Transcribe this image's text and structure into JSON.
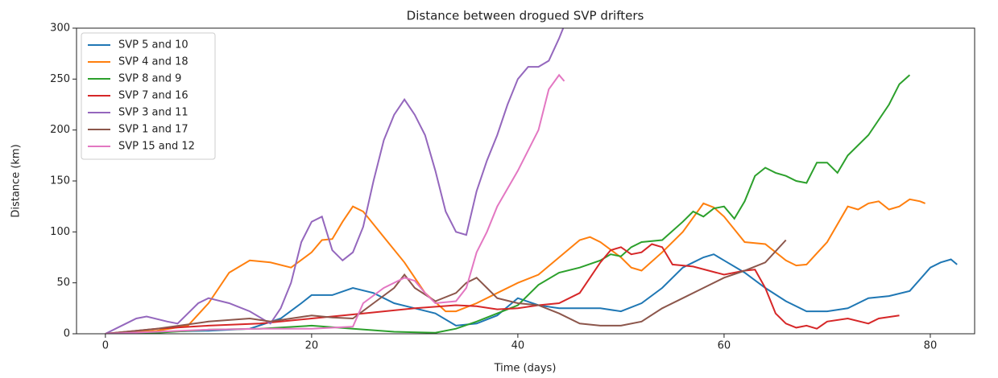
{
  "chart_data": {
    "type": "line",
    "title": "Distance between drogued SVP drifters",
    "x_label": "Time (days)",
    "y_label": "Distance (km)",
    "xlim": [
      -2.8,
      84.3
    ],
    "ylim": [
      0,
      300
    ],
    "xticks": [
      0,
      20,
      40,
      60,
      80
    ],
    "yticks": [
      0,
      50,
      100,
      150,
      200,
      250,
      300
    ],
    "legend": "upper left",
    "series": [
      {
        "name": "SVP 5 and 10",
        "color": "#1f77b4",
        "x": [
          0,
          5,
          10,
          14,
          17,
          19,
          20,
          22,
          24,
          26,
          28,
          30,
          32,
          34,
          36,
          38,
          40,
          42,
          44,
          46,
          48,
          50,
          52,
          54,
          56,
          57,
          58,
          59,
          60,
          62,
          64,
          66,
          68,
          70,
          72,
          74,
          76,
          78,
          80,
          81,
          82,
          82.6
        ],
        "values": [
          0,
          2,
          3,
          5,
          15,
          30,
          38,
          38,
          45,
          40,
          30,
          25,
          20,
          8,
          10,
          18,
          35,
          28,
          25,
          25,
          25,
          22,
          30,
          45,
          65,
          70,
          75,
          78,
          72,
          60,
          45,
          32,
          22,
          22,
          25,
          35,
          37,
          42,
          65,
          70,
          73,
          68
        ]
      },
      {
        "name": "SVP 4 and 18",
        "color": "#ff7f0e",
        "x": [
          0,
          5,
          8,
          10,
          12,
          14,
          16,
          18,
          20,
          21,
          22,
          23,
          24,
          25,
          27,
          29,
          31,
          33,
          34,
          36,
          38,
          40,
          42,
          44,
          46,
          47,
          48,
          50,
          51,
          52,
          54,
          56,
          58,
          59,
          60,
          62,
          64,
          66,
          67,
          68,
          70,
          72,
          73,
          74,
          75,
          76,
          77,
          78,
          79,
          79.5
        ],
        "values": [
          0,
          3,
          8,
          30,
          60,
          72,
          70,
          65,
          80,
          92,
          93,
          110,
          125,
          120,
          95,
          70,
          40,
          22,
          22,
          30,
          40,
          50,
          58,
          75,
          92,
          95,
          90,
          75,
          65,
          62,
          80,
          100,
          128,
          124,
          115,
          90,
          88,
          72,
          67,
          68,
          90,
          125,
          122,
          128,
          130,
          122,
          125,
          132,
          130,
          128
        ]
      },
      {
        "name": "SVP 8 and 9",
        "color": "#2ca02c",
        "x": [
          0,
          5,
          10,
          15,
          20,
          24,
          28,
          32,
          34,
          36,
          38,
          40,
          42,
          44,
          46,
          48,
          49,
          50,
          51,
          52,
          54,
          56,
          57,
          58,
          59,
          60,
          61,
          62,
          63,
          64,
          65,
          66,
          67,
          68,
          69,
          70,
          71,
          72,
          74,
          76,
          77,
          78
        ],
        "values": [
          0,
          1,
          4,
          5,
          8,
          5,
          2,
          1,
          5,
          12,
          20,
          28,
          48,
          60,
          65,
          72,
          78,
          76,
          85,
          90,
          92,
          110,
          120,
          115,
          123,
          125,
          113,
          130,
          155,
          163,
          158,
          155,
          150,
          148,
          168,
          168,
          158,
          175,
          195,
          225,
          245,
          254
        ]
      },
      {
        "name": "SVP 7 and 16",
        "color": "#d62728",
        "x": [
          0,
          5,
          10,
          15,
          20,
          25,
          30,
          34,
          36,
          38,
          40,
          42,
          44,
          46,
          48,
          49,
          50,
          51,
          52,
          53,
          54,
          55,
          57,
          60,
          62,
          63,
          64,
          65,
          66,
          67,
          68,
          69,
          70,
          72,
          74,
          75,
          77
        ],
        "values": [
          0,
          5,
          8,
          10,
          15,
          20,
          25,
          28,
          27,
          24,
          25,
          28,
          30,
          40,
          70,
          82,
          85,
          78,
          80,
          88,
          85,
          68,
          66,
          58,
          62,
          63,
          45,
          20,
          10,
          6,
          8,
          5,
          12,
          15,
          10,
          15,
          18
        ]
      },
      {
        "name": "SVP 3 and 11",
        "color": "#9467bd",
        "x": [
          0,
          2,
          3,
          4,
          6,
          7,
          9,
          10,
          12,
          14,
          16,
          17,
          18,
          19,
          20,
          21,
          22,
          23,
          24,
          25,
          26,
          27,
          28,
          29,
          30,
          31,
          32,
          33,
          34,
          35,
          36,
          37,
          38,
          39,
          40,
          41,
          42,
          43,
          44,
          44.8
        ],
        "values": [
          0,
          10,
          15,
          17,
          12,
          10,
          30,
          35,
          30,
          22,
          10,
          25,
          50,
          90,
          110,
          115,
          82,
          72,
          80,
          105,
          150,
          190,
          215,
          230,
          215,
          195,
          160,
          120,
          100,
          97,
          140,
          170,
          195,
          225,
          250,
          262,
          262,
          268,
          290,
          310
        ]
      },
      {
        "name": "SVP 1 and 17",
        "color": "#8c564b",
        "x": [
          0,
          5,
          10,
          14,
          16,
          18,
          20,
          22,
          24,
          26,
          28,
          29,
          30,
          32,
          34,
          35,
          36,
          37,
          38,
          40,
          42,
          44,
          46,
          48,
          50,
          52,
          54,
          56,
          58,
          60,
          62,
          64,
          66
        ],
        "values": [
          0,
          5,
          12,
          15,
          12,
          15,
          18,
          16,
          15,
          30,
          45,
          58,
          45,
          32,
          40,
          50,
          55,
          45,
          35,
          30,
          28,
          20,
          10,
          8,
          8,
          12,
          25,
          35,
          45,
          55,
          62,
          70,
          92
        ]
      },
      {
        "name": "SVP 15 and 12",
        "color": "#e377c2",
        "x": [
          0,
          5,
          10,
          15,
          20,
          24,
          25,
          27,
          29,
          30,
          31,
          32,
          34,
          35,
          36,
          37,
          38,
          40,
          42,
          43,
          44,
          44.5
        ],
        "values": [
          0,
          2,
          4,
          5,
          5,
          7,
          30,
          45,
          55,
          52,
          40,
          30,
          32,
          45,
          80,
          100,
          125,
          160,
          200,
          240,
          254,
          248
        ]
      }
    ]
  }
}
